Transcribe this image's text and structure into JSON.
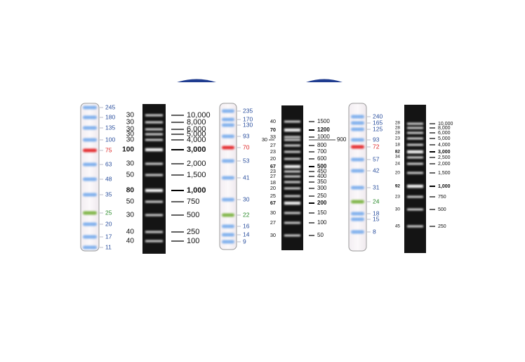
{
  "ladders": [
    {
      "right": [
        "245",
        "180",
        "135",
        "100",
        "75",
        "63",
        "48",
        "35",
        "25",
        "20",
        "17",
        "11"
      ]
    },
    {
      "left": [
        "30",
        "30",
        "30",
        "30",
        "30",
        "100",
        "30",
        "50",
        "80",
        "50",
        "30",
        "40",
        "40"
      ],
      "right": [
        "10,000",
        "8,000",
        "6,000",
        "5,000",
        "4,000",
        "3,000",
        "2,000",
        "1,500",
        "1,000",
        "750",
        "500",
        "250",
        "100"
      ]
    },
    {
      "right": [
        "235",
        "170",
        "130",
        "93",
        "70",
        "53",
        "41",
        "30",
        "22",
        "16",
        "14",
        "9"
      ]
    },
    {
      "left": [
        "40",
        "70",
        "33",
        "30",
        "27",
        "23",
        "20",
        "67",
        "23",
        "27",
        "18",
        "20",
        "25",
        "67",
        "30",
        "27",
        "30"
      ],
      "right": [
        "1500",
        "1200",
        "1000",
        "900",
        "800",
        "700",
        "600",
        "500",
        "450",
        "400",
        "350",
        "300",
        "250",
        "200",
        "150",
        "100",
        "50"
      ]
    },
    {
      "right": [
        "240",
        "165",
        "125",
        "93",
        "72",
        "57",
        "42",
        "31",
        "24",
        "18",
        "15",
        "8"
      ]
    },
    {
      "left": [
        "28",
        "28",
        "28",
        "23",
        "18",
        "82",
        "34",
        "24",
        "20",
        "92",
        "23",
        "30",
        "45"
      ],
      "right": [
        "10,000",
        "8,000",
        "6,000",
        "5,000",
        "4,000",
        "3,000",
        "2,500",
        "2,000",
        "1,500",
        "1,000",
        "750",
        "500",
        "250"
      ]
    }
  ]
}
